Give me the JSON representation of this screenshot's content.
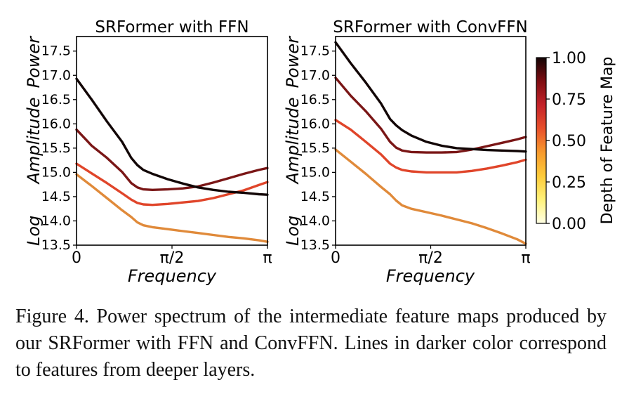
{
  "caption": "Figure 4. Power spectrum of the intermediate feature maps produced by our SRFormer with FFN and ConvFFN. Lines in darker color correspond to features from deeper layers.",
  "chart_data": [
    {
      "type": "line",
      "title": "SRFormer with FFN",
      "xlabel": "Frequency",
      "ylabel_words": [
        "Log",
        "Amplitude",
        "Power"
      ],
      "xlim": [
        0,
        3.14159
      ],
      "ylim": [
        13.5,
        17.8
      ],
      "xticks": [
        0,
        1.5708,
        3.14159
      ],
      "xtick_labels": [
        "0",
        "π/2",
        "π"
      ],
      "yticks": [
        13.5,
        14.0,
        14.5,
        15.0,
        15.5,
        16.0,
        16.5,
        17.0,
        17.5
      ],
      "ytick_labels": [
        "13.5",
        "14.0",
        "14.5",
        "15.0",
        "15.5",
        "16.0",
        "16.5",
        "17.0",
        "17.5"
      ],
      "x": [
        0,
        0.25,
        0.5,
        0.75,
        0.9,
        1.0,
        1.1,
        1.25,
        1.5,
        1.75,
        2.0,
        2.25,
        2.5,
        2.75,
        3.0,
        3.14
      ],
      "series": [
        {
          "depth": 0.4,
          "color": "#e08a3a",
          "values": [
            14.96,
            14.72,
            14.47,
            14.22,
            14.08,
            13.97,
            13.91,
            13.87,
            13.83,
            13.79,
            13.75,
            13.71,
            13.67,
            13.64,
            13.6,
            13.57
          ]
        },
        {
          "depth": 0.6,
          "color": "#e0452a",
          "values": [
            15.18,
            14.98,
            14.78,
            14.57,
            14.44,
            14.37,
            14.34,
            14.33,
            14.35,
            14.38,
            14.41,
            14.47,
            14.55,
            14.63,
            14.74,
            14.8
          ]
        },
        {
          "depth": 0.8,
          "color": "#7a1616",
          "values": [
            15.88,
            15.55,
            15.3,
            15.01,
            14.78,
            14.69,
            14.65,
            14.64,
            14.65,
            14.67,
            14.71,
            14.79,
            14.88,
            14.97,
            15.05,
            15.09
          ]
        },
        {
          "depth": 1.0,
          "color": "#120606",
          "values": [
            16.93,
            16.5,
            16.05,
            15.63,
            15.3,
            15.15,
            15.05,
            14.97,
            14.86,
            14.77,
            14.69,
            14.64,
            14.6,
            14.58,
            14.55,
            14.54
          ]
        }
      ]
    },
    {
      "type": "line",
      "title": "SRFormer with ConvFFN",
      "xlabel": "Frequency",
      "ylabel_words": [
        "Log",
        "Amplitude",
        "Power"
      ],
      "xlim": [
        0,
        3.14159
      ],
      "ylim": [
        13.5,
        17.8
      ],
      "xticks": [
        0,
        1.5708,
        3.14159
      ],
      "xtick_labels": [
        "0",
        "π/2",
        "π"
      ],
      "yticks": [
        13.5,
        14.0,
        14.5,
        15.0,
        15.5,
        16.0,
        16.5,
        17.0,
        17.5
      ],
      "ytick_labels": [
        "13.5",
        "14.0",
        "14.5",
        "15.0",
        "15.5",
        "16.0",
        "16.5",
        "17.0",
        "17.5"
      ],
      "x": [
        0,
        0.25,
        0.5,
        0.75,
        0.9,
        1.0,
        1.1,
        1.25,
        1.5,
        1.75,
        2.0,
        2.25,
        2.5,
        2.75,
        3.0,
        3.14
      ],
      "series": [
        {
          "depth": 0.4,
          "color": "#e08a3a",
          "values": [
            15.47,
            15.22,
            14.97,
            14.7,
            14.55,
            14.42,
            14.32,
            14.25,
            14.18,
            14.11,
            14.03,
            13.95,
            13.85,
            13.74,
            13.62,
            13.53
          ]
        },
        {
          "depth": 0.6,
          "color": "#e0452a",
          "values": [
            16.08,
            15.88,
            15.63,
            15.37,
            15.18,
            15.1,
            15.05,
            15.02,
            15.0,
            15.0,
            15.0,
            15.03,
            15.08,
            15.14,
            15.21,
            15.26
          ]
        },
        {
          "depth": 0.8,
          "color": "#7a1616",
          "values": [
            16.95,
            16.58,
            16.26,
            15.9,
            15.63,
            15.51,
            15.45,
            15.42,
            15.41,
            15.41,
            15.42,
            15.47,
            15.54,
            15.61,
            15.68,
            15.73
          ]
        },
        {
          "depth": 1.0,
          "color": "#120606",
          "values": [
            17.68,
            17.25,
            16.85,
            16.42,
            16.1,
            15.97,
            15.87,
            15.76,
            15.63,
            15.55,
            15.5,
            15.48,
            15.46,
            15.45,
            15.44,
            15.43
          ]
        }
      ]
    }
  ],
  "colorbar": {
    "label": "Depth of Feature Map",
    "ticks": [
      1.0,
      0.75,
      0.5,
      0.25,
      0.0
    ],
    "tick_labels": [
      "1.00",
      "0.75",
      "0.50",
      "0.25",
      "0.00"
    ],
    "range": [
      0,
      1
    ],
    "colormap": [
      "#ffffe5",
      "#fff27a",
      "#fdcb3a",
      "#f79a2d",
      "#e8502b",
      "#c4232a",
      "#7f0d12",
      "#130404"
    ]
  }
}
